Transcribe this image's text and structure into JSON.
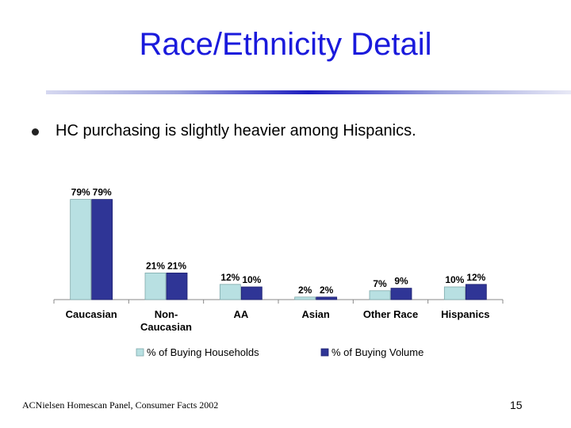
{
  "slide": {
    "title": "Race/Ethnicity Detail",
    "bullet": "HC purchasing is slightly heavier among Hispanics.",
    "source": "ACNielsen Homescan Panel, Consumer Facts 2002",
    "page_number": "15"
  },
  "chart_data": {
    "type": "bar",
    "categories": [
      "Caucasian",
      "Non-\nCaucasian",
      "AA",
      "Asian",
      "Other Race",
      "Hispanics"
    ],
    "series": [
      {
        "name": "% of Buying Households",
        "values": [
          79,
          21,
          12,
          2,
          7,
          10
        ],
        "labels": [
          "79%",
          "21%",
          "12%",
          "2%",
          "7%",
          "10%"
        ],
        "color": "#b8e0e2"
      },
      {
        "name": "% of Buying Volume",
        "values": [
          79,
          21,
          10,
          2,
          9,
          12
        ],
        "labels": [
          "79%",
          "21%",
          "10%",
          "2%",
          "9%",
          "12%"
        ],
        "color": "#2f3596"
      }
    ],
    "ylim": [
      0,
      100
    ],
    "grid": false,
    "legend": "bottom"
  }
}
